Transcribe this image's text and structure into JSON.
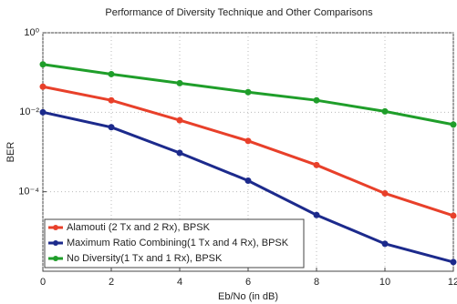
{
  "chart_data": {
    "type": "line",
    "title": "Performance of Diversity Technique and Other Comparisons",
    "xlabel": "Eb/No (in dB)",
    "ylabel": "BER",
    "x": [
      0,
      2,
      4,
      6,
      8,
      10,
      12
    ],
    "xlim": [
      0,
      12
    ],
    "xticks": [
      0,
      2,
      4,
      6,
      8,
      10,
      12
    ],
    "ylim": [
      1e-06,
      1
    ],
    "log_y": true,
    "grid": true,
    "legend": "lower left",
    "yticks": [
      {
        "value": 1,
        "label": "10⁰"
      },
      {
        "value": 0.01,
        "label": "10⁻²"
      },
      {
        "value": 0.0001,
        "label": "10⁻⁴"
      }
    ],
    "series": [
      {
        "name": "Alamouti (2 Tx and 2 Rx), BPSK",
        "color": "#e8402a",
        "values": [
          0.044,
          0.02,
          0.0063,
          0.0019,
          0.00047,
          9.1e-05,
          2.5e-05
        ]
      },
      {
        "name": "Maximum Ratio Combining(1 Tx and 4 Rx), BPSK",
        "color": "#1c2a8c",
        "values": [
          0.01,
          0.0042,
          0.00095,
          0.00019,
          2.6e-05,
          4.9e-06,
          1.7e-06
        ]
      },
      {
        "name": "No Diversity(1 Tx and 1 Rx), BPSK",
        "color": "#1f9e2a",
        "values": [
          0.16,
          0.091,
          0.054,
          0.032,
          0.02,
          0.0105,
          0.0049
        ]
      }
    ]
  }
}
